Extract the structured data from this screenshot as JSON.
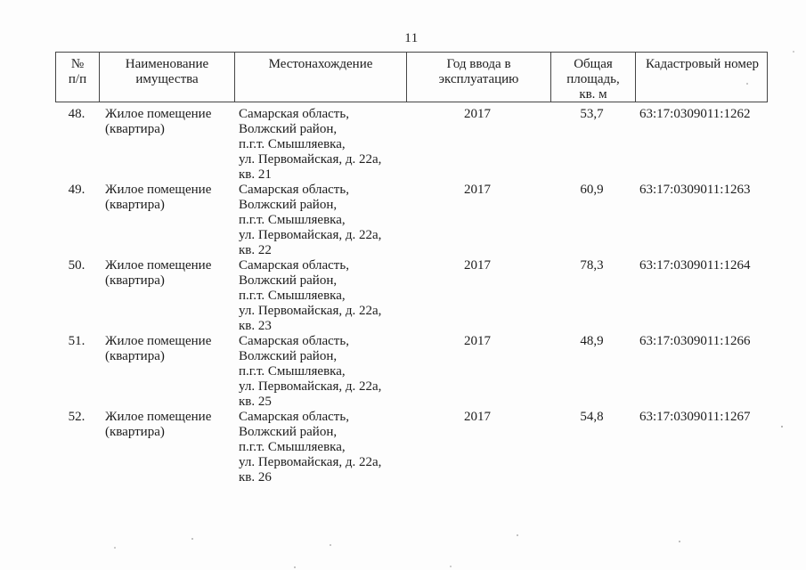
{
  "page": {
    "number": "11"
  },
  "table": {
    "headers": {
      "number": "№\nп/п",
      "name": "Наименование\nимущества",
      "location": "Местонахождение",
      "year": "Год ввода в\nэксплуатацию",
      "area": "Общая\nплощадь,\nкв. м",
      "cadastral": "Кадастровый номер"
    },
    "rows": [
      {
        "number": "48.",
        "name": "Жилое помещение\n(квартира)",
        "location": "Самарская область,\nВолжский район,\nп.г.т. Смышляевка,\nул. Первомайская, д. 22а,\nкв. 21",
        "year": "2017",
        "area": "53,7",
        "cadastral": "63:17:0309011:1262"
      },
      {
        "number": "49.",
        "name": "Жилое помещение\n(квартира)",
        "location": "Самарская область,\nВолжский район,\nп.г.т. Смышляевка,\nул. Первомайская, д. 22а,\nкв. 22",
        "year": "2017",
        "area": "60,9",
        "cadastral": "63:17:0309011:1263"
      },
      {
        "number": "50.",
        "name": "Жилое помещение\n(квартира)",
        "location": "Самарская область,\nВолжский район,\nп.г.т. Смышляевка,\nул. Первомайская, д. 22а,\nкв. 23",
        "year": "2017",
        "area": "78,3",
        "cadastral": "63:17:0309011:1264"
      },
      {
        "number": "51.",
        "name": "Жилое помещение\n(квартира)",
        "location": "Самарская область,\nВолжский район,\nп.г.т. Смышляевка,\nул. Первомайская, д. 22а,\nкв. 25",
        "year": "2017",
        "area": "48,9",
        "cadastral": "63:17:0309011:1266"
      },
      {
        "number": "52.",
        "name": "Жилое помещение\n(квартира)",
        "location": "Самарская область,\nВолжский район,\nп.г.т. Смышляевка,\nул. Первомайская, д. 22а,\nкв. 26",
        "year": "2017",
        "area": "54,8",
        "cadastral": "63:17:0309011:1267"
      }
    ]
  }
}
